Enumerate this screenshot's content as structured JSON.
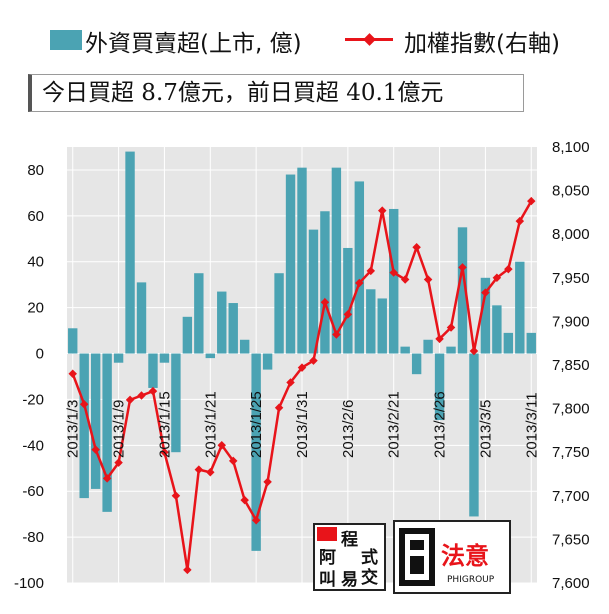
{
  "legend": {
    "bar_label": "外資買賣超(上市, 億)",
    "line_label": "加權指數(右軸)"
  },
  "summary_text": "今日買超 8.7億元，前日買超 40.1億元",
  "logos": {
    "left_chars": [
      "阿",
      "程",
      "式",
      "叫",
      "易",
      "交"
    ],
    "right_main": "法意",
    "right_sub": "PHIGROUP"
  },
  "chart_data": {
    "type": "bar+line",
    "title": "",
    "xlabel": "",
    "ylabel": "",
    "y_left_lim": [
      -100,
      90
    ],
    "y_left_ticks": [
      -100,
      -80,
      -60,
      -40,
      -20,
      0,
      20,
      40,
      60,
      80
    ],
    "y_right_lim": [
      7600,
      8100
    ],
    "y_right_ticks": [
      "7,600",
      "7,650",
      "7,700",
      "7,750",
      "7,800",
      "7,850",
      "7,900",
      "7,950",
      "8,000",
      "8,050",
      "8,100"
    ],
    "y_right_tick_values": [
      7600,
      7650,
      7700,
      7750,
      7800,
      7850,
      7900,
      7950,
      8000,
      8050,
      8100
    ],
    "x_tick_labels": [
      "2013/1/3",
      "2013/1/9",
      "2013/1/15",
      "2013/1/21",
      "2013/1/25",
      "2013/1/31",
      "2013/2/6",
      "2013/2/21",
      "2013/2/26",
      "2013/3/5",
      "2013/3/11"
    ],
    "x_tick_indices": [
      0,
      4,
      8,
      12,
      16,
      20,
      24,
      28,
      32,
      36,
      40
    ],
    "grid": true,
    "colors": {
      "bar": "#4ba3b3",
      "line": "#e8141a",
      "plot_bg": "#e6e6e6",
      "grid": "#ffffff"
    },
    "series": [
      {
        "name": "外資買賣超(上市, 億)",
        "type": "bar",
        "axis": "left",
        "values": [
          11,
          -63,
          -59,
          -69,
          -4,
          88,
          31,
          -15,
          -4,
          -43,
          16,
          35,
          -2,
          27,
          22,
          6,
          -86,
          -7,
          35,
          78,
          81,
          54,
          62,
          81,
          46,
          75,
          28,
          24,
          63,
          3,
          -9,
          6,
          -29,
          3,
          55,
          -71,
          33,
          21,
          9,
          40,
          9
        ]
      },
      {
        "name": "加權指數(右軸)",
        "type": "line",
        "axis": "right",
        "values": [
          7840,
          7805,
          7753,
          7720,
          7738,
          7810,
          7815,
          7820,
          7750,
          7700,
          7615,
          7730,
          7727,
          7758,
          7740,
          7695,
          7672,
          7716,
          7801,
          7830,
          7847,
          7855,
          7922,
          7885,
          7908,
          7944,
          7958,
          8027,
          7956,
          7948,
          7985,
          7948,
          7880,
          7893,
          7962,
          7866,
          7933,
          7950,
          7960,
          8015,
          8038
        ]
      }
    ]
  }
}
